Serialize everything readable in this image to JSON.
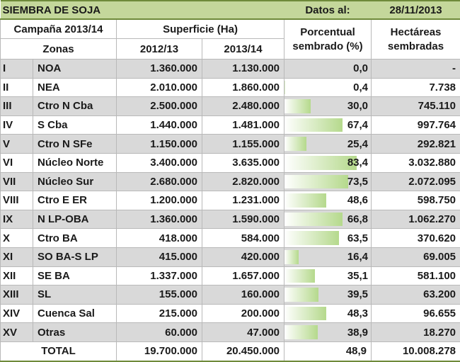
{
  "banner": {
    "title": "SIEMBRA DE SOJA",
    "datos_label": "Datos al:",
    "datos_value": "28/11/2013"
  },
  "header": {
    "campaign": "Campaña 2013/14",
    "superficie": "Superficie (Ha)",
    "porcentual_line1": "Porcentual",
    "porcentual_line2": "sembrado (%)",
    "hectareas_line1": "Hectáreas",
    "hectareas_line2": "sembradas",
    "zonas": "Zonas",
    "year_a": "2012/13",
    "year_b": "2013/14"
  },
  "rows": [
    {
      "roman": "I",
      "zone": "NOA",
      "s2012": "1.360.000",
      "s2013": "1.130.000",
      "pct": "0,0",
      "pct_value": 0.0,
      "ha": "-"
    },
    {
      "roman": "II",
      "zone": "NEA",
      "s2012": "2.010.000",
      "s2013": "1.860.000",
      "pct": "0,4",
      "pct_value": 0.4,
      "ha": "7.738"
    },
    {
      "roman": "III",
      "zone": "Ctro N Cba",
      "s2012": "2.500.000",
      "s2013": "2.480.000",
      "pct": "30,0",
      "pct_value": 30.0,
      "ha": "745.110"
    },
    {
      "roman": "IV",
      "zone": "S Cba",
      "s2012": "1.440.000",
      "s2013": "1.481.000",
      "pct": "67,4",
      "pct_value": 67.4,
      "ha": "997.764"
    },
    {
      "roman": "V",
      "zone": "Ctro N SFe",
      "s2012": "1.150.000",
      "s2013": "1.155.000",
      "pct": "25,4",
      "pct_value": 25.4,
      "ha": "292.821"
    },
    {
      "roman": "VI",
      "zone": "Núcleo Norte",
      "s2012": "3.400.000",
      "s2013": "3.635.000",
      "pct": "83,4",
      "pct_value": 83.4,
      "ha": "3.032.880"
    },
    {
      "roman": "VII",
      "zone": "Núcleo Sur",
      "s2012": "2.680.000",
      "s2013": "2.820.000",
      "pct": "73,5",
      "pct_value": 73.5,
      "ha": "2.072.095"
    },
    {
      "roman": "VIII",
      "zone": "Ctro E ER",
      "s2012": "1.200.000",
      "s2013": "1.231.000",
      "pct": "48,6",
      "pct_value": 48.6,
      "ha": "598.750"
    },
    {
      "roman": "IX",
      "zone": "N LP-OBA",
      "s2012": "1.360.000",
      "s2013": "1.590.000",
      "pct": "66,8",
      "pct_value": 66.8,
      "ha": "1.062.270"
    },
    {
      "roman": "X",
      "zone": "Ctro BA",
      "s2012": "418.000",
      "s2013": "584.000",
      "pct": "63,5",
      "pct_value": 63.5,
      "ha": "370.620"
    },
    {
      "roman": "XI",
      "zone": "SO BA-S LP",
      "s2012": "415.000",
      "s2013": "420.000",
      "pct": "16,4",
      "pct_value": 16.4,
      "ha": "69.005"
    },
    {
      "roman": "XII",
      "zone": "SE BA",
      "s2012": "1.337.000",
      "s2013": "1.657.000",
      "pct": "35,1",
      "pct_value": 35.1,
      "ha": "581.100"
    },
    {
      "roman": "XIII",
      "zone": "SL",
      "s2012": "155.000",
      "s2013": "160.000",
      "pct": "39,5",
      "pct_value": 39.5,
      "ha": "63.200"
    },
    {
      "roman": "XIV",
      "zone": "Cuenca Sal",
      "s2012": "215.000",
      "s2013": "200.000",
      "pct": "48,3",
      "pct_value": 48.3,
      "ha": "96.655"
    },
    {
      "roman": "XV",
      "zone": "Otras",
      "s2012": "60.000",
      "s2013": "47.000",
      "pct": "38,9",
      "pct_value": 38.9,
      "ha": "18.270"
    }
  ],
  "total": {
    "label": "TOTAL",
    "s2012": "19.700.000",
    "s2013": "20.450.000",
    "pct": "48,9",
    "ha": "10.008.278"
  },
  "colors": {
    "banner_bg": "#c4d79b",
    "shade_row": "#d9d9d9",
    "bar_green": "#b5d98c"
  }
}
